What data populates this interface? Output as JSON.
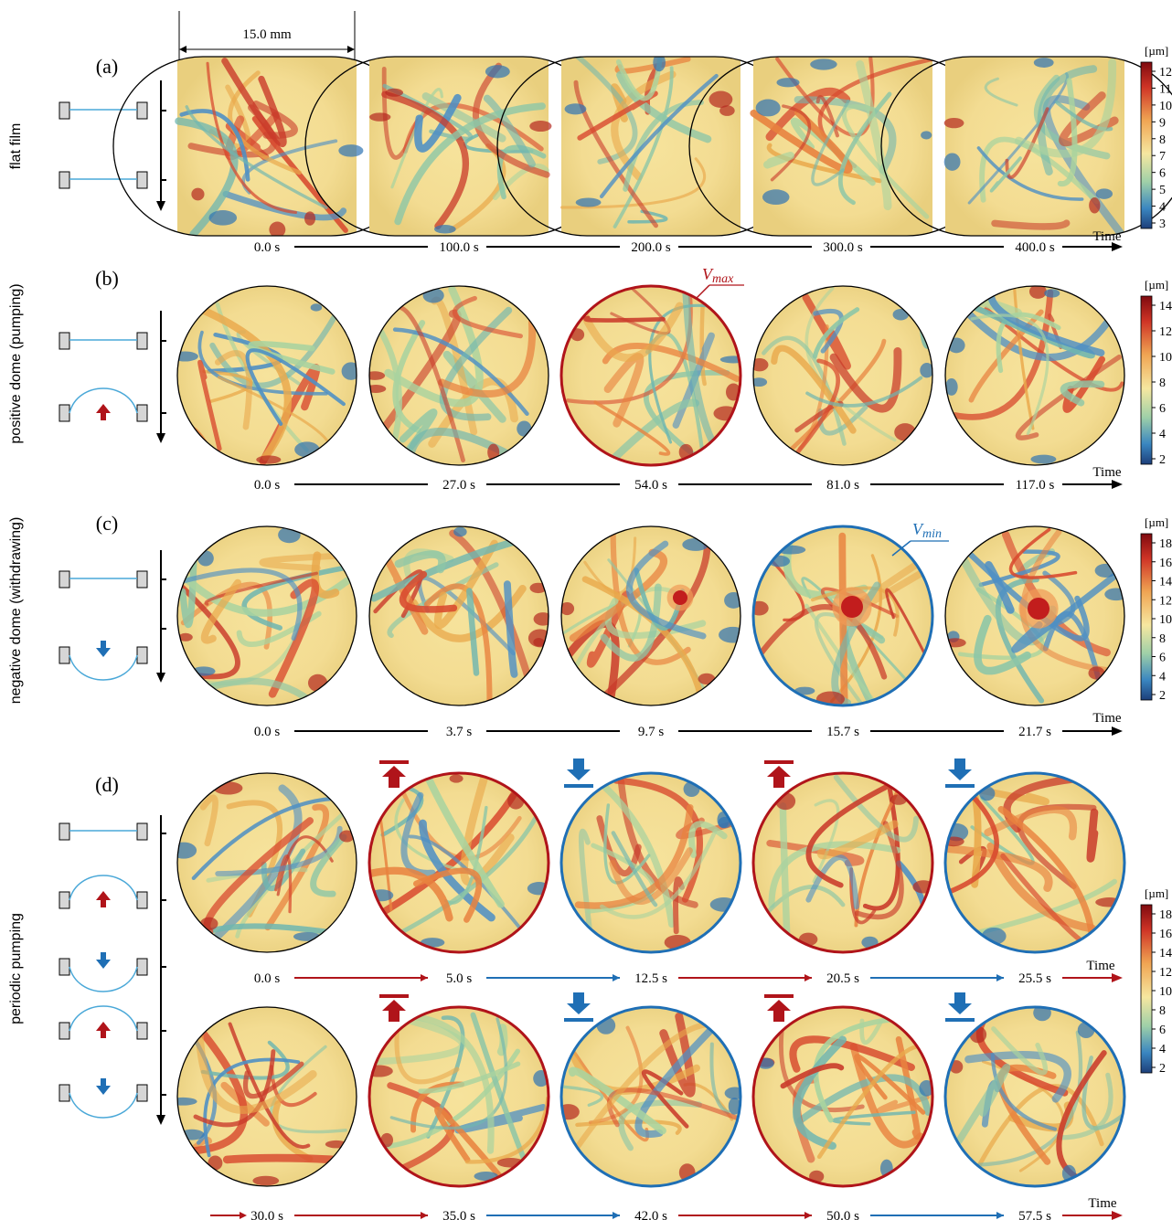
{
  "figure": {
    "scale_bar": "15.0 mm",
    "unit_label": "[µm]",
    "time_label": "Time",
    "colors": {
      "pump_up": "#b0141a",
      "pump_down": "#1f6fb5",
      "film_line": "#4aa8d8",
      "base": "#f5e29a"
    },
    "icons": [
      "film-holder-icon",
      "up-arrow-icon",
      "down-arrow-icon",
      "pump-up-bar-icon",
      "pump-down-bar-icon"
    ]
  },
  "rows": [
    {
      "id": "a",
      "label": "(a)",
      "side_label": "flat film",
      "colorbar_ticks": [
        "12",
        "11",
        "10",
        "9",
        "8",
        "7",
        "6",
        "5",
        "4",
        "3"
      ],
      "times": [
        "0.0 s",
        "100.0 s",
        "200.0 s",
        "300.0 s",
        "400.0 s"
      ],
      "annotation": ""
    },
    {
      "id": "b",
      "label": "(b)",
      "side_label": "positive dome (pumping)",
      "colorbar_ticks": [
        "14",
        "12",
        "10",
        "8",
        "6",
        "4",
        "2"
      ],
      "times": [
        "0.0 s",
        "27.0 s",
        "54.0 s",
        "81.0 s",
        "117.0 s"
      ],
      "annotation": "V",
      "annotation_sub": "max"
    },
    {
      "id": "c",
      "label": "(c)",
      "side_label": "negative dome (withdrawing)",
      "colorbar_ticks": [
        "18",
        "16",
        "14",
        "12",
        "10",
        "8",
        "6",
        "4",
        "2"
      ],
      "times": [
        "0.0 s",
        "3.7 s",
        "9.7 s",
        "15.7 s",
        "21.7 s"
      ],
      "annotation": "V",
      "annotation_sub": "min"
    },
    {
      "id": "d",
      "label": "(d)",
      "side_label": "periodic pumping",
      "colorbar_ticks": [
        "18",
        "16",
        "14",
        "12",
        "10",
        "8",
        "6",
        "4",
        "2"
      ],
      "times_top": [
        "0.0 s",
        "5.0 s",
        "12.5 s",
        "20.5 s",
        "25.5 s"
      ],
      "times_bottom": [
        "30.0 s",
        "35.0 s",
        "42.0 s",
        "50.0 s",
        "57.5 s"
      ]
    }
  ]
}
